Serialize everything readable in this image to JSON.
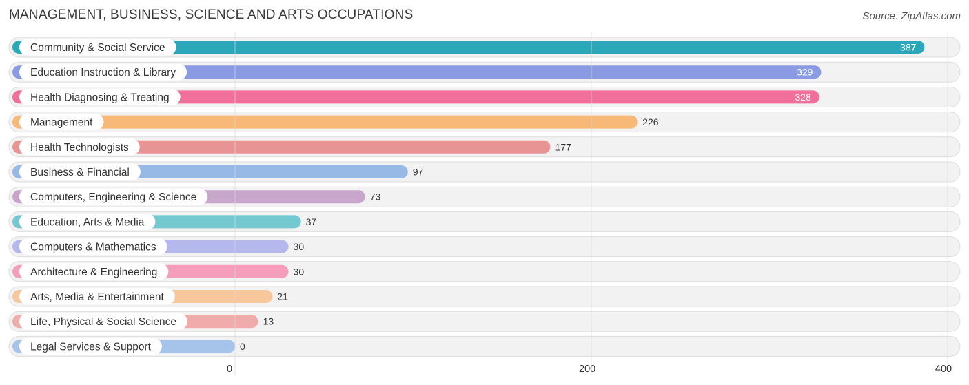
{
  "header": {
    "title": "MANAGEMENT, BUSINESS, SCIENCE AND ARTS OCCUPATIONS",
    "source": "Source: ZipAtlas.com"
  },
  "chart_data": {
    "type": "bar",
    "orientation": "horizontal",
    "title": "MANAGEMENT, BUSINESS, SCIENCE AND ARTS OCCUPATIONS",
    "xlabel": "",
    "ylabel": "",
    "xlim": [
      0,
      400
    ],
    "x_ticks": [
      0,
      200,
      400
    ],
    "grid": true,
    "categories": [
      "Community & Social Service",
      "Education Instruction & Library",
      "Health Diagnosing & Treating",
      "Management",
      "Health Technologists",
      "Business & Financial",
      "Computers, Engineering & Science",
      "Education, Arts & Media",
      "Computers & Mathematics",
      "Architecture & Engineering",
      "Arts, Media & Entertainment",
      "Life, Physical & Social Science",
      "Legal Services & Support"
    ],
    "values": [
      387,
      329,
      328,
      226,
      177,
      97,
      73,
      37,
      30,
      30,
      21,
      13,
      0
    ],
    "colors": [
      "#2aa8b8",
      "#8a9be3",
      "#f06f9b",
      "#f8b878",
      "#e89494",
      "#96b9e6",
      "#c8a6cc",
      "#74c8d0",
      "#b4b8ec",
      "#f59ebc",
      "#f8c89c",
      "#f0acaa",
      "#a6c4ea"
    ]
  }
}
